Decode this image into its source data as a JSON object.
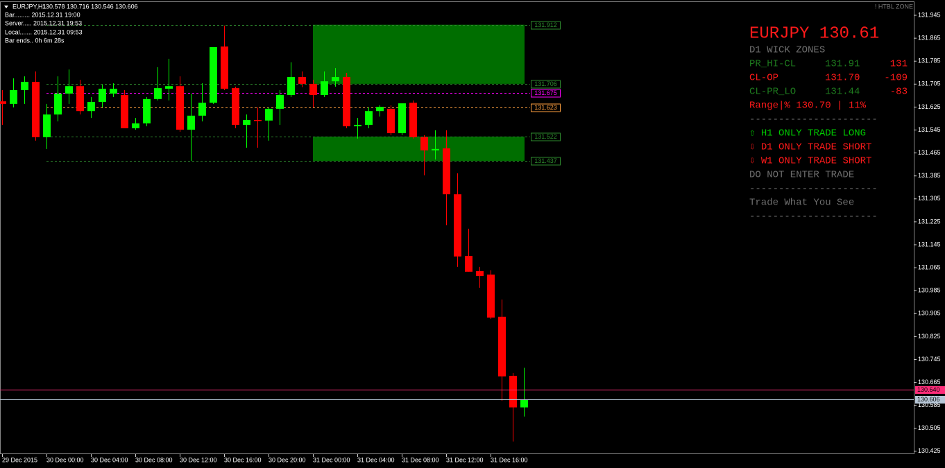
{
  "header": {
    "symbol": "EURJPY,H1",
    "ohlc": "130.578 130.716 130.546 130.606",
    "info": [
      "Bar......... 2015.12.31 19:00",
      "Server..... 2015.12.31 19:53",
      "Local....... 2015.12.31 09:53",
      "Bar ends.. 0h 6m 28s"
    ],
    "indicator": "! HTBL ZONE"
  },
  "panel": {
    "title": "EURJPY 130.61",
    "subtitle": "D1 WICK ZONES",
    "rows": [
      [
        "PR_HI-CL",
        "131.91",
        "131"
      ],
      [
        "CL-OP",
        "131.70",
        "-109"
      ],
      [
        "CL-PR_LO",
        "131.44",
        "-83"
      ]
    ],
    "range": "Range|% 130.70 | 11%",
    "separator": "----------------------",
    "signals": [
      "⇧ H1 ONLY TRADE LONG",
      "⇩ D1 ONLY TRADE SHORT",
      "⇩ W1 ONLY TRADE SHORT"
    ],
    "advice": "DO NOT ENTER TRADE",
    "motto": "Trade What You See"
  },
  "chart_data": {
    "type": "candlestick",
    "categories": [
      "29 Dec 2015",
      null,
      null,
      null,
      "30 Dec 00:00",
      null,
      null,
      null,
      "30 Dec 04:00",
      null,
      null,
      null,
      "30 Dec 08:00",
      null,
      null,
      null,
      "30 Dec 12:00",
      null,
      null,
      null,
      "30 Dec 16:00",
      null,
      null,
      null,
      "30 Dec 20:00",
      null,
      null,
      null,
      "31 Dec 00:00",
      null,
      null,
      null,
      "31 Dec 04:00",
      null,
      null,
      null,
      "31 Dec 08:00",
      null,
      null,
      null,
      "31 Dec 12:00",
      null,
      null,
      null,
      "31 Dec 16:00",
      null,
      null,
      null
    ],
    "open": [
      131.645,
      131.636,
      131.684,
      131.713,
      131.52,
      131.599,
      131.672,
      131.698,
      131.611,
      131.643,
      131.672,
      131.667,
      131.551,
      131.568,
      131.653,
      131.689,
      131.698,
      131.546,
      131.595,
      131.64,
      131.836,
      131.691,
      131.563,
      131.58,
      131.578,
      131.619,
      131.667,
      131.73,
      131.706,
      131.667,
      131.715,
      131.73,
      131.558,
      131.563,
      131.611,
      131.619,
      131.534,
      131.64,
      131.52,
      131.474,
      131.481,
      131.321,
      131.106,
      131.053,
      131.041,
      130.894,
      130.688,
      130.578
    ],
    "high": [
      131.684,
      131.725,
      131.732,
      131.749,
      131.636,
      131.732,
      131.756,
      131.72,
      131.66,
      131.703,
      131.708,
      131.684,
      131.587,
      131.66,
      131.764,
      131.793,
      131.732,
      131.672,
      131.708,
      131.834,
      131.909,
      131.696,
      131.599,
      131.624,
      131.624,
      131.684,
      131.781,
      131.749,
      131.72,
      131.749,
      131.761,
      131.744,
      131.587,
      131.624,
      131.631,
      131.631,
      131.638,
      131.648,
      131.527,
      131.544,
      131.544,
      131.394,
      131.201,
      131.068,
      131.056,
      130.954,
      130.698,
      130.716
    ],
    "low": [
      131.563,
      131.624,
      131.636,
      131.508,
      131.479,
      131.575,
      131.636,
      131.599,
      131.587,
      131.624,
      131.66,
      131.551,
      131.546,
      131.558,
      131.648,
      131.648,
      131.539,
      131.437,
      131.575,
      131.636,
      131.684,
      131.551,
      131.483,
      131.483,
      131.508,
      131.563,
      131.66,
      131.694,
      131.624,
      131.66,
      131.696,
      131.551,
      131.515,
      131.551,
      131.592,
      131.527,
      131.527,
      131.515,
      131.387,
      131.442,
      131.213,
      131.068,
      131.051,
      130.995,
      130.886,
      130.601,
      130.459,
      130.546
    ],
    "close": [
      131.636,
      131.684,
      131.713,
      131.52,
      131.599,
      131.672,
      131.698,
      131.611,
      131.643,
      131.689,
      131.689,
      131.551,
      131.568,
      131.653,
      131.691,
      131.698,
      131.546,
      131.595,
      131.64,
      131.834,
      131.689,
      131.563,
      131.58,
      131.578,
      131.619,
      131.667,
      131.73,
      131.706,
      131.667,
      131.715,
      131.73,
      131.558,
      131.563,
      131.611,
      131.626,
      131.534,
      131.638,
      131.52,
      131.474,
      131.479,
      131.321,
      131.104,
      131.051,
      131.036,
      130.891,
      130.686,
      130.578,
      130.606
    ],
    "up_color": "#00ff00",
    "down_color": "#ff0000",
    "ylim": [
      130.415,
      131.991
    ],
    "yticks": [
      131.945,
      131.865,
      131.785,
      131.705,
      131.625,
      131.545,
      131.465,
      131.385,
      131.305,
      131.225,
      131.145,
      131.065,
      130.985,
      130.905,
      130.825,
      130.745,
      130.665,
      130.585,
      130.505,
      130.425
    ],
    "levels": [
      {
        "value": 131.912,
        "color": "#2e8b2e"
      },
      {
        "value": 131.706,
        "color": "#2e8b2e"
      },
      {
        "value": 131.675,
        "color": "#ff00ff"
      },
      {
        "value": 131.623,
        "color": "#ffa040"
      },
      {
        "value": 131.522,
        "color": "#2e8b2e"
      },
      {
        "value": 131.437,
        "color": "#2e8b2e"
      }
    ],
    "zones": [
      {
        "low": 131.706,
        "high": 131.912
      },
      {
        "low": 131.437,
        "high": 131.522
      }
    ],
    "zone_color": "#006e00",
    "price_lines": [
      {
        "value": {
          "value": 130.64,
          "label": "130.640"
        },
        "color": "#ff2d7a"
      },
      {
        "value": 130.606,
        "color": "#b8c8d8"
      }
    ],
    "grid": false
  }
}
